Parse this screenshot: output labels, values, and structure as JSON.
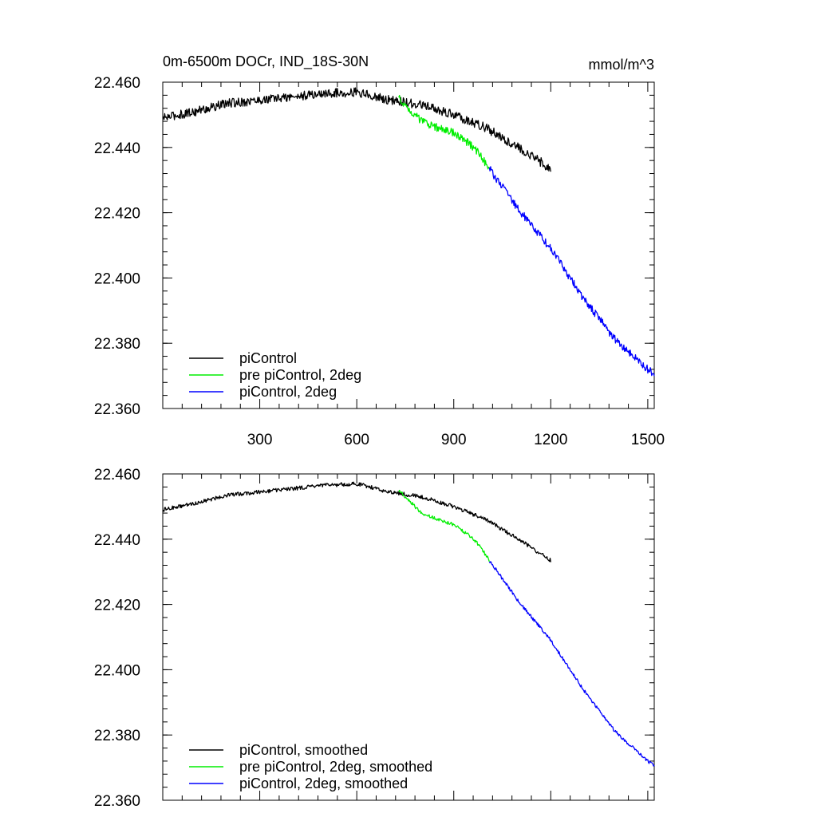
{
  "chart_data": [
    {
      "type": "line",
      "title_left": "0m-6500m DOCr, IND_18S-30N",
      "title_right": "mmol/m^3",
      "xlim": [
        0,
        1520
      ],
      "ylim": [
        22.36,
        22.46
      ],
      "yticks": [
        "22.460",
        "22.440",
        "22.420",
        "22.400",
        "22.380",
        "22.360"
      ],
      "xticks": [
        "300",
        "600",
        "900",
        "1200",
        "1500"
      ],
      "legend": [
        "piControl",
        "pre piControl, 2deg",
        "piControl, 2deg"
      ],
      "legend_position": "bottom-left",
      "series": [
        {
          "name": "piControl",
          "color": "#000000",
          "noise": 0.0014,
          "x": [
            0,
            100,
            200,
            300,
            400,
            500,
            600,
            700,
            800,
            900,
            1000,
            1100,
            1200
          ],
          "y": [
            22.449,
            22.451,
            22.4535,
            22.4545,
            22.4555,
            22.4565,
            22.457,
            22.4545,
            22.453,
            22.45,
            22.446,
            22.44,
            22.4335
          ]
        },
        {
          "name": "pre piControl, 2deg",
          "color": "#00ee00",
          "noise": 0.0012,
          "x": [
            730,
            760,
            800,
            850,
            900,
            950,
            980,
            1010
          ],
          "y": [
            22.455,
            22.452,
            22.448,
            22.446,
            22.4445,
            22.441,
            22.438,
            22.4335
          ]
        },
        {
          "name": "piControl, 2deg",
          "color": "#0000ff",
          "noise": 0.0012,
          "x": [
            1010,
            1100,
            1200,
            1300,
            1400,
            1500,
            1520
          ],
          "y": [
            22.4335,
            22.421,
            22.409,
            22.394,
            22.381,
            22.372,
            22.3705
          ]
        }
      ]
    },
    {
      "type": "line",
      "xlim": [
        0,
        1520
      ],
      "ylim": [
        22.36,
        22.46
      ],
      "yticks": [
        "22.460",
        "22.440",
        "22.420",
        "22.400",
        "22.380",
        "22.360"
      ],
      "legend": [
        "piControl, smoothed",
        "pre piControl, 2deg, smoothed",
        "piControl, 2deg, smoothed"
      ],
      "legend_position": "bottom-left",
      "series": [
        {
          "name": "piControl, smoothed",
          "color": "#000000",
          "noise": 0.0006,
          "x": [
            0,
            100,
            200,
            300,
            400,
            500,
            600,
            700,
            800,
            900,
            1000,
            1100,
            1200
          ],
          "y": [
            22.449,
            22.451,
            22.4535,
            22.4545,
            22.4555,
            22.4565,
            22.457,
            22.4545,
            22.453,
            22.45,
            22.446,
            22.44,
            22.4335
          ]
        },
        {
          "name": "pre piControl, 2deg, smoothed",
          "color": "#00ee00",
          "noise": 0.0005,
          "x": [
            730,
            760,
            800,
            850,
            900,
            950,
            980,
            1010
          ],
          "y": [
            22.455,
            22.452,
            22.448,
            22.446,
            22.4445,
            22.441,
            22.438,
            22.4335
          ]
        },
        {
          "name": "piControl, 2deg, smoothed",
          "color": "#0000ff",
          "noise": 0.0005,
          "x": [
            1010,
            1100,
            1200,
            1300,
            1400,
            1500,
            1520
          ],
          "y": [
            22.4335,
            22.421,
            22.409,
            22.394,
            22.381,
            22.372,
            22.3705
          ]
        }
      ]
    }
  ]
}
